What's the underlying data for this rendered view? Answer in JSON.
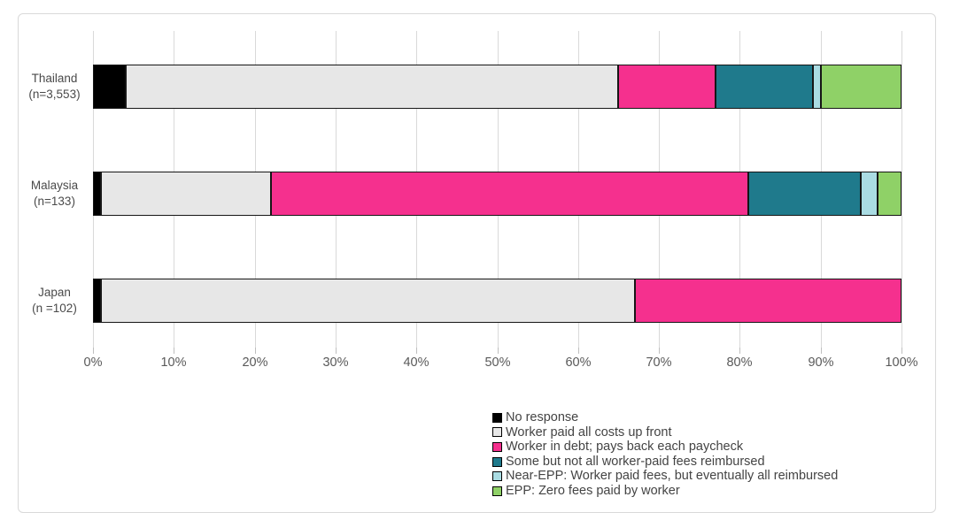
{
  "chart_data": {
    "type": "bar",
    "orientation": "horizontal",
    "stacked": true,
    "unit": "percent",
    "categories": [
      {
        "name": "Thailand",
        "n_label": "(n=3,553)"
      },
      {
        "name": "Malaysia",
        "n_label": "(n=133)"
      },
      {
        "name": "Japan",
        "n_label": "(n =102)"
      }
    ],
    "series": [
      {
        "name": "No response",
        "color": "#000000",
        "values": [
          4,
          1,
          1
        ]
      },
      {
        "name": "Worker paid all costs up front",
        "color": "#E7E7E7",
        "values": [
          61,
          21,
          66
        ]
      },
      {
        "name": "Worker in debt; pays back each paycheck",
        "color": "#F5308E",
        "values": [
          12,
          59,
          33
        ]
      },
      {
        "name": "Some but not all worker-paid fees reimbursed",
        "color": "#1F7A8C",
        "values": [
          12,
          14,
          0
        ]
      },
      {
        "name": "Near-EPP: Worker paid fees, but eventually all reimbursed",
        "color": "#AADCE3",
        "values": [
          1,
          2,
          0
        ]
      },
      {
        "name": "EPP: Zero fees paid by worker",
        "color": "#8FD167",
        "values": [
          10,
          3,
          0
        ]
      }
    ],
    "x_axis": {
      "min": 0,
      "max": 100,
      "tick_step": 10,
      "ticks": [
        "0%",
        "10%",
        "20%",
        "30%",
        "40%",
        "50%",
        "60%",
        "70%",
        "80%",
        "90%",
        "100%"
      ]
    },
    "legend_position": "bottom-center",
    "grid": true,
    "colors": {
      "gridline": "#D9D9D9",
      "figure_border": "#D9D9D9",
      "axis_text": "#595959",
      "category_text": "#4A4A4A",
      "legend_text": "#444444",
      "segment_border": "#161616"
    }
  }
}
